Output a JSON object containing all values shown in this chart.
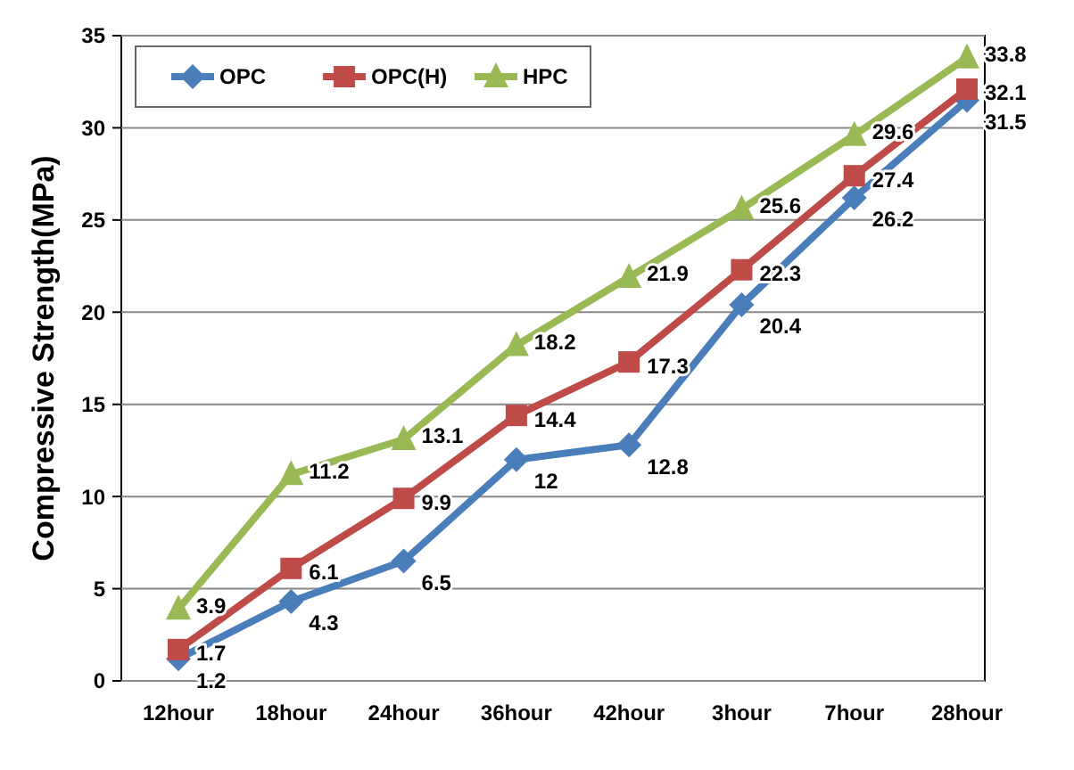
{
  "chart_data": {
    "type": "line",
    "ylabel": "Compressive Strength(MPa)",
    "categories": [
      "12hour",
      "18hour",
      "24hour",
      "36hour",
      "42hour",
      "3hour",
      "7hour",
      "28hour"
    ],
    "series": [
      {
        "name": "OPC",
        "color": "#4a7ebb",
        "marker": "diamond",
        "values": [
          1.2,
          4.3,
          6.5,
          12,
          12.8,
          20.4,
          26.2,
          31.5
        ]
      },
      {
        "name": "OPC(H)",
        "color": "#be4b48",
        "marker": "square",
        "values": [
          1.7,
          6.1,
          9.9,
          14.4,
          17.3,
          22.3,
          27.4,
          32.1
        ]
      },
      {
        "name": "HPC",
        "color": "#98b954",
        "marker": "triangle",
        "values": [
          3.9,
          11.2,
          13.1,
          18.2,
          21.9,
          25.6,
          29.6,
          33.8
        ]
      }
    ],
    "ylim": [
      0,
      35
    ],
    "yticks": [
      0,
      5,
      10,
      15,
      20,
      25,
      30,
      35
    ],
    "grid": "y",
    "legend": "top left",
    "data_labels": true,
    "line_style": "solid"
  }
}
